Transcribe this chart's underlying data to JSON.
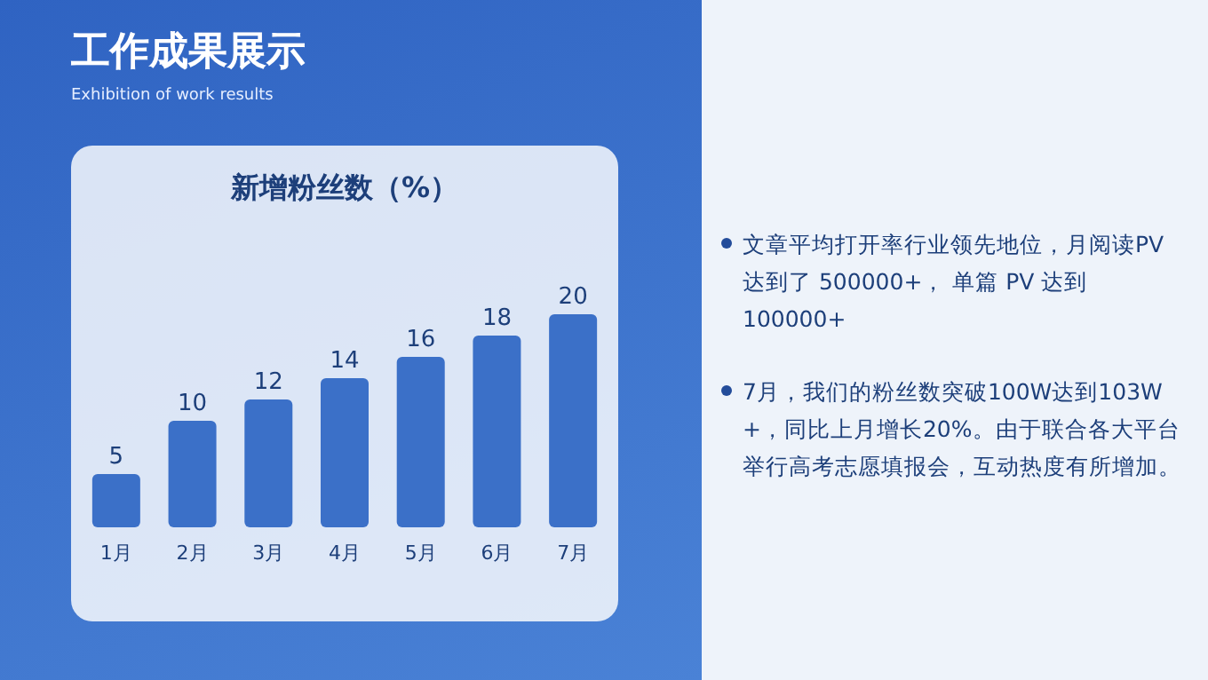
{
  "chart_data": {
    "type": "bar",
    "title": "新增粉丝数（%）",
    "categories": [
      "1月",
      "2月",
      "3月",
      "4月",
      "5月",
      "6月",
      "7月"
    ],
    "values": [
      5,
      10,
      12,
      14,
      16,
      18,
      20
    ],
    "color": "#3b70c8",
    "data_labels": true,
    "annotations": [
      "工作成果展示",
      "Exhibition of work results",
      "文章平均打开率行业领先地位，月阅读PV 达到了 500000+， 单篇 PV 达到 100000+",
      "7月，我们的粉丝数突破100W达到103W +，同比上月增长20%。由于联合各大平台举行高考志愿填报会，互动热度有所增加。"
    ]
  }
}
